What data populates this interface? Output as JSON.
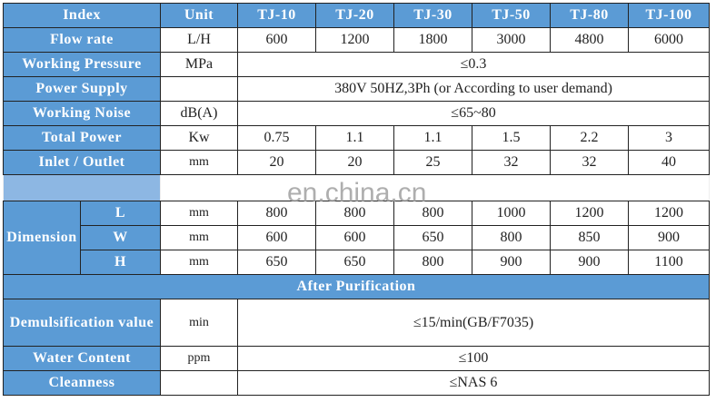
{
  "header": {
    "index": "Index",
    "unit": "Unit",
    "models": [
      "TJ-10",
      "TJ-20",
      "TJ-30",
      "TJ-50",
      "TJ-80",
      "TJ-100"
    ]
  },
  "flow_rate": {
    "label": "Flow rate",
    "unit": "L/H",
    "values": [
      "600",
      "1200",
      "1800",
      "3000",
      "4800",
      "6000"
    ]
  },
  "working_pressure": {
    "label": "Working Pressure",
    "unit": "MPa",
    "value": "≤0.3"
  },
  "power_supply": {
    "label": "Power Supply",
    "unit": "",
    "value": "380V 50HZ,3Ph (or According to user demand)"
  },
  "working_noise": {
    "label": "Working Noise",
    "unit": "dB(A)",
    "value": "≤65~80"
  },
  "total_power": {
    "label": "Total Power",
    "unit": "Kw",
    "values": [
      "0.75",
      "1.1",
      "1.1",
      "1.5",
      "2.2",
      "3"
    ]
  },
  "inlet_outlet": {
    "label": "Inlet / Outlet",
    "unit": "mm",
    "values": [
      "20",
      "20",
      "25",
      "32",
      "32",
      "40"
    ]
  },
  "watermark": "en.china.cn",
  "dimension": {
    "label": "Dimension",
    "rows": [
      {
        "label": "L",
        "unit": "mm",
        "values": [
          "800",
          "800",
          "800",
          "1000",
          "1200",
          "1200"
        ]
      },
      {
        "label": "W",
        "unit": "mm",
        "values": [
          "600",
          "600",
          "650",
          "800",
          "850",
          "900"
        ]
      },
      {
        "label": "H",
        "unit": "mm",
        "values": [
          "650",
          "650",
          "800",
          "900",
          "900",
          "1100"
        ]
      }
    ]
  },
  "after_purification": "After Purification",
  "demulsification": {
    "label": "Demulsification value",
    "unit": "min",
    "value": "≤15/min(GB/F7035)"
  },
  "water_content": {
    "label": "Water Content",
    "unit": "ppm",
    "value": "≤100"
  },
  "cleanness": {
    "label": "Cleanness",
    "unit": "",
    "value": "≤NAS 6"
  },
  "colors": {
    "header": "#5b9bd5"
  }
}
